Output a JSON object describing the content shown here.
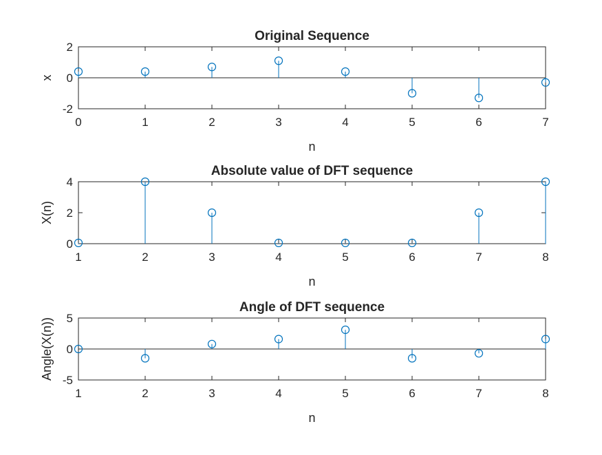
{
  "colors": {
    "stem": "#0072BD",
    "axes": "#262626",
    "background": "#ffffff"
  },
  "chart_data": [
    {
      "type": "stem",
      "title": "Original Sequence",
      "xlabel": "n",
      "ylabel": "x",
      "x": [
        0,
        1,
        2,
        3,
        4,
        5,
        6,
        7
      ],
      "y": [
        0.4,
        0.4,
        0.7,
        1.1,
        0.4,
        -1.0,
        -1.3,
        -0.3
      ],
      "xlim": [
        0,
        7
      ],
      "ylim": [
        -2,
        2
      ],
      "xticks": [
        0,
        1,
        2,
        3,
        4,
        5,
        6,
        7
      ],
      "yticks": [
        -2,
        0,
        2
      ],
      "grid": false,
      "baseline": 0
    },
    {
      "type": "stem",
      "title": "Absolute value of DFT sequence",
      "xlabel": "n",
      "ylabel": "X(n)",
      "x": [
        1,
        2,
        3,
        4,
        5,
        6,
        7,
        8
      ],
      "y": [
        0.05,
        4.0,
        2.0,
        0.05,
        0.05,
        0.05,
        2.0,
        4.0
      ],
      "xlim": [
        1,
        8
      ],
      "ylim": [
        0,
        4
      ],
      "xticks": [
        1,
        2,
        3,
        4,
        5,
        6,
        7,
        8
      ],
      "yticks": [
        0,
        2,
        4
      ],
      "grid": false,
      "baseline": 0
    },
    {
      "type": "stem",
      "title": "Angle of DFT sequence",
      "xlabel": "n",
      "ylabel": "Angle(X(n))",
      "x": [
        1,
        2,
        3,
        4,
        5,
        6,
        7,
        8
      ],
      "y": [
        0.0,
        -1.5,
        0.8,
        1.6,
        3.1,
        -1.5,
        -0.7,
        1.6
      ],
      "xlim": [
        1,
        8
      ],
      "ylim": [
        -5,
        5
      ],
      "xticks": [
        1,
        2,
        3,
        4,
        5,
        6,
        7,
        8
      ],
      "yticks": [
        -5,
        0,
        5
      ],
      "grid": false,
      "baseline": 0
    }
  ]
}
